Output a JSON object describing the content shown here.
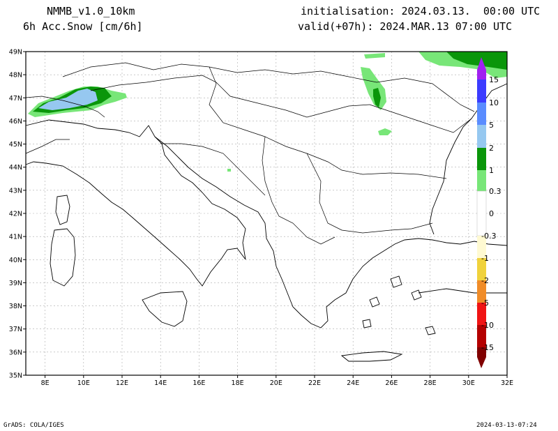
{
  "header": {
    "model": "NMMB_v1.0_10km",
    "field": "6h Acc.Snow [cm/6h]",
    "init": "initialisation: 2024.03.13.  00:00 UTC",
    "valid": "valid(+07h): 2024.MAR.13 07:00 UTC"
  },
  "footer": {
    "left": "GrADS: COLA/IGES",
    "right": "2024-03-13-07:24"
  },
  "map": {
    "lon_range": [
      7,
      32
    ],
    "lat_range": [
      35,
      49
    ],
    "lat_ticks": [
      "35N",
      "36N",
      "37N",
      "38N",
      "39N",
      "40N",
      "41N",
      "42N",
      "43N",
      "44N",
      "45N",
      "46N",
      "47N",
      "48N",
      "49N"
    ],
    "lon_ticks": [
      "8E",
      "10E",
      "12E",
      "14E",
      "16E",
      "18E",
      "20E",
      "22E",
      "24E",
      "26E",
      "28E",
      "30E",
      "32E"
    ],
    "lon_tick_values": [
      8,
      10,
      12,
      14,
      16,
      18,
      20,
      22,
      24,
      26,
      28,
      30,
      32
    ],
    "lat_tick_values": [
      35,
      36,
      37,
      38,
      39,
      40,
      41,
      42,
      43,
      44,
      45,
      46,
      47,
      48,
      49
    ],
    "grid": true
  },
  "colorbar": {
    "labels": [
      "15",
      "10",
      "5",
      "2",
      "1",
      "0.3",
      "0",
      "-0.3",
      "-1",
      "-2",
      "-5",
      "-10",
      "-15"
    ],
    "colors": {
      "purple": "#a020f0",
      "blue_dark": "#3c3cff",
      "blue": "#5a8cff",
      "blue_light": "#96c8f0",
      "green_dark": "#0a960a",
      "green_light": "#78e678",
      "white": "#ffffff",
      "cream": "#fffad2",
      "yellow": "#f0d23c",
      "orange": "#f08c28",
      "red": "#f01414",
      "dark_red": "#b40000",
      "maroon": "#800000"
    }
  }
}
